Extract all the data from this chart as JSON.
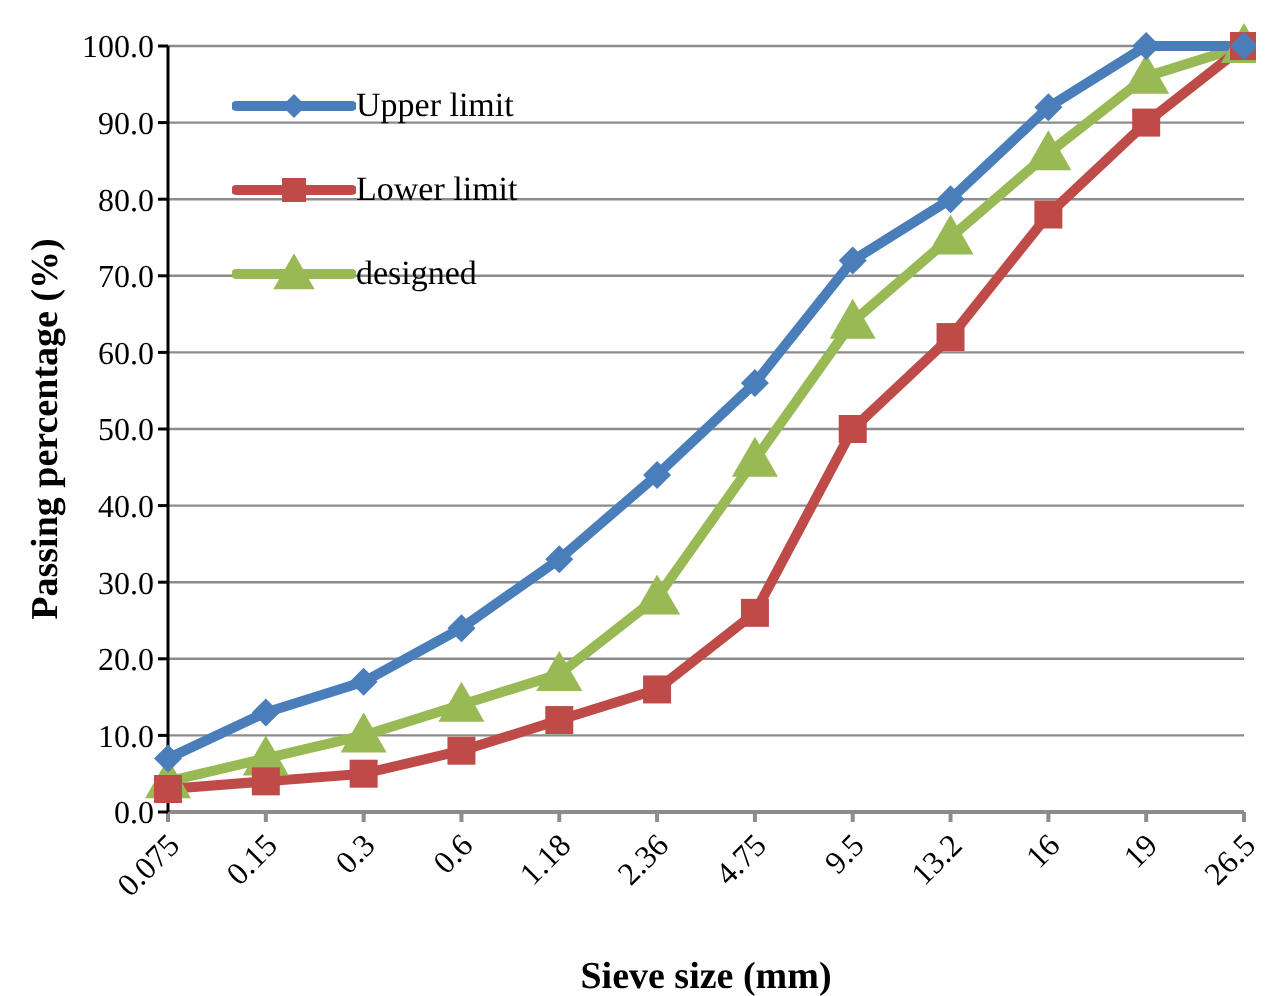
{
  "chart_data": {
    "type": "line",
    "xlabel": "Sieve size (mm)",
    "ylabel": "Passing percentage (%)",
    "categories": [
      "0.075",
      "0.15",
      "0.3",
      "0.6",
      "1.18",
      "2.36",
      "4.75",
      "9.5",
      "13.2",
      "16",
      "19",
      "26.5"
    ],
    "series": [
      {
        "name": "Upper limit",
        "color": "#4a7ebb",
        "marker": "diamond",
        "values": [
          7,
          13,
          17,
          24,
          33,
          44,
          56,
          72,
          80,
          92,
          100,
          100
        ]
      },
      {
        "name": "Lower limit",
        "color": "#be4b48",
        "marker": "square",
        "values": [
          3,
          4,
          5,
          8,
          12,
          16,
          26,
          50,
          62,
          78,
          90,
          100
        ]
      },
      {
        "name": "designed",
        "color": "#98b954",
        "marker": "triangle",
        "values": [
          4,
          7,
          10,
          14,
          18,
          28,
          46,
          64,
          75,
          86,
          96,
          100
        ]
      }
    ],
    "ylim": [
      0,
      100
    ],
    "yticks": [
      {
        "value": 0,
        "label": "0.0"
      },
      {
        "value": 10,
        "label": "10.0"
      },
      {
        "value": 20,
        "label": "20.0"
      },
      {
        "value": 30,
        "label": "30.0"
      },
      {
        "value": 40,
        "label": "40.0"
      },
      {
        "value": 50,
        "label": "50.0"
      },
      {
        "value": 60,
        "label": "60.0"
      },
      {
        "value": 70,
        "label": "70.0"
      },
      {
        "value": 80,
        "label": "80.0"
      },
      {
        "value": 90,
        "label": "90.0"
      },
      {
        "value": 100,
        "label": "100.0"
      }
    ],
    "grid": "y",
    "legend": "top left",
    "line_style": "solid"
  }
}
